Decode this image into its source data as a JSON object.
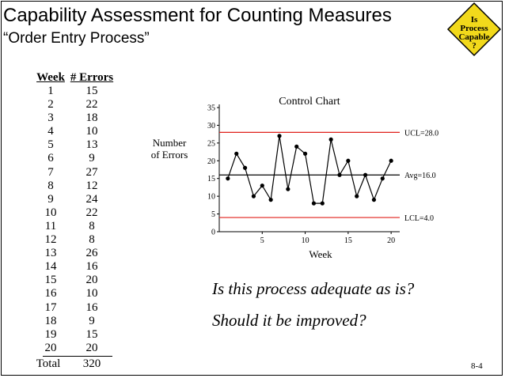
{
  "header": {
    "title": "Capability Assessment for Counting Measures",
    "subtitle": "“Order Entry Process”"
  },
  "badge": {
    "lines": [
      "Is",
      "Process",
      "Capable",
      "?"
    ],
    "fill_color": "#f2d91b"
  },
  "table": {
    "headers": [
      "Week",
      "# Errors"
    ],
    "rows": [
      [
        "1",
        "15"
      ],
      [
        "2",
        "22"
      ],
      [
        "3",
        "18"
      ],
      [
        "4",
        "10"
      ],
      [
        "5",
        "13"
      ],
      [
        "6",
        "9"
      ],
      [
        "7",
        "27"
      ],
      [
        "8",
        "12"
      ],
      [
        "9",
        "24"
      ],
      [
        "10",
        "22"
      ],
      [
        "11",
        "8"
      ],
      [
        "12",
        "8"
      ],
      [
        "13",
        "26"
      ],
      [
        "14",
        "16"
      ],
      [
        "15",
        "20"
      ],
      [
        "16",
        "10"
      ],
      [
        "17",
        "16"
      ],
      [
        "18",
        "9"
      ],
      [
        "19",
        "15"
      ],
      [
        "20",
        "20"
      ]
    ],
    "total_label": "Total",
    "total_value": "320"
  },
  "chart_data": {
    "type": "line",
    "title": "Control Chart",
    "xlabel": "Week",
    "ylabel_lines": [
      "Number",
      "of Errors"
    ],
    "x": [
      1,
      2,
      3,
      4,
      5,
      6,
      7,
      8,
      9,
      10,
      11,
      12,
      13,
      14,
      15,
      16,
      17,
      18,
      19,
      20
    ],
    "series": [
      {
        "values": [
          15,
          22,
          18,
          10,
          13,
          9,
          27,
          12,
          24,
          22,
          8,
          8,
          26,
          16,
          20,
          10,
          16,
          9,
          15,
          20
        ]
      }
    ],
    "xlim": [
      0,
      21
    ],
    "ylim": [
      0,
      35
    ],
    "xticks": [
      5,
      10,
      15,
      20
    ],
    "yticks": [
      0,
      5,
      10,
      15,
      20,
      25,
      30,
      35
    ],
    "reference_lines": [
      {
        "label": "UCL=28.0",
        "value": 28,
        "color": "#e0201b"
      },
      {
        "label": "Avg=16.0",
        "value": 16,
        "color": "#000000"
      },
      {
        "label": "LCL=4.0",
        "value": 4,
        "color": "#e0201b"
      }
    ],
    "grid": false
  },
  "questions": [
    "Is this process adequate as is?",
    "Should it be improved?"
  ],
  "page_number": "8-4"
}
